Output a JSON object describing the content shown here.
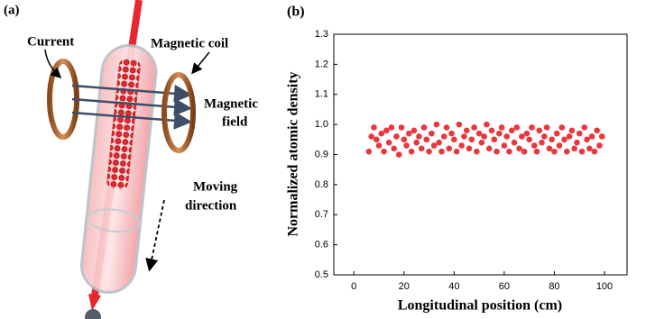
{
  "diagram": {
    "panel_label": "(a)",
    "labels": [
      "Current",
      "Magnetic coil",
      "Magnetic",
      "field",
      "Moving",
      "direction"
    ]
  },
  "chart_data": {
    "type": "scatter",
    "panel_label": "(b)",
    "x_label": "Longitudinal position (cm)",
    "y_label": "Normalized atomic density",
    "color": "#e8383d",
    "xlim": [
      -8,
      109
    ],
    "xticks": [
      0,
      20,
      40,
      60,
      80,
      100
    ],
    "ylim": [
      0.5,
      1.3
    ],
    "yticks": [
      0.5,
      0.6,
      0.7,
      0.8,
      0.9,
      {
        "value": 1,
        "label": "1.0"
      },
      1.1,
      1.2,
      1.3
    ],
    "x": [
      6,
      7,
      8,
      9,
      10,
      11,
      12,
      13,
      14,
      15,
      16,
      17,
      18,
      19,
      20,
      21,
      22,
      23,
      24,
      25,
      26,
      27,
      28,
      29,
      30,
      31,
      32,
      33,
      34,
      35,
      36,
      37,
      38,
      39,
      40,
      41,
      42,
      43,
      44,
      45,
      46,
      47,
      48,
      49,
      50,
      51,
      52,
      53,
      54,
      55,
      56,
      57,
      58,
      59,
      60,
      61,
      62,
      63,
      64,
      65,
      66,
      67,
      68,
      69,
      70,
      71,
      72,
      73,
      74,
      75,
      76,
      77,
      78,
      79,
      80,
      81,
      82,
      83,
      84,
      85,
      86,
      87,
      88,
      89,
      90,
      91,
      92,
      93,
      94,
      95,
      96,
      97,
      98,
      99
    ],
    "values": [
      0.91,
      0.96,
      0.99,
      0.95,
      0.93,
      0.97,
      0.91,
      0.98,
      0.94,
      0.99,
      0.92,
      0.96,
      0.9,
      0.99,
      0.95,
      0.93,
      0.97,
      0.91,
      0.98,
      0.94,
      0.96,
      0.92,
      0.99,
      0.95,
      0.91,
      0.97,
      0.93,
      1.0,
      0.94,
      0.91,
      0.96,
      0.99,
      0.92,
      0.97,
      0.95,
      0.91,
      1.0,
      0.93,
      0.96,
      0.98,
      0.92,
      0.95,
      0.99,
      0.91,
      0.97,
      0.94,
      0.96,
      1.0,
      0.92,
      0.98,
      0.95,
      0.91,
      0.97,
      0.99,
      0.93,
      0.96,
      0.91,
      0.98,
      0.94,
      0.99,
      0.92,
      0.96,
      0.91,
      0.97,
      0.95,
      0.99,
      0.93,
      0.91,
      0.98,
      0.94,
      0.96,
      0.99,
      0.92,
      0.95,
      0.91,
      0.97,
      0.93,
      0.99,
      0.95,
      0.91,
      0.96,
      0.98,
      0.92,
      0.94,
      0.97,
      0.91,
      0.99,
      0.95,
      0.92,
      0.96,
      0.91,
      0.98,
      0.93,
      0.96
    ]
  }
}
